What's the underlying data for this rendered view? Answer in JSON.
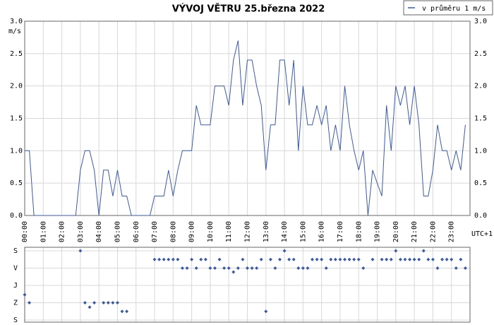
{
  "chart_data": [
    {
      "type": "line",
      "title": "VÝVOJ VĚTRU  25.března 2022",
      "ylabel": "m/s",
      "xlabel": "UTC+1",
      "legend": "top-right",
      "grid": true,
      "right_axis": true,
      "xlim": [
        0,
        24
      ],
      "xticks": [
        {
          "value": 0,
          "label": "00:00"
        },
        {
          "value": 1,
          "label": "01:00"
        },
        {
          "value": 2,
          "label": "02:00"
        },
        {
          "value": 3,
          "label": "03:00"
        },
        {
          "value": 4,
          "label": "04:00"
        },
        {
          "value": 5,
          "label": "05:00"
        },
        {
          "value": 6,
          "label": "06:00"
        },
        {
          "value": 7,
          "label": "07:00"
        },
        {
          "value": 8,
          "label": "08:00"
        },
        {
          "value": 9,
          "label": "09:00"
        },
        {
          "value": 10,
          "label": "10:00"
        },
        {
          "value": 11,
          "label": "11:00"
        },
        {
          "value": 12,
          "label": "12:00"
        },
        {
          "value": 13,
          "label": "13:00"
        },
        {
          "value": 14,
          "label": "14:00"
        },
        {
          "value": 15,
          "label": "15:00"
        },
        {
          "value": 16,
          "label": "16:00"
        },
        {
          "value": 17,
          "label": "17:00"
        },
        {
          "value": 18,
          "label": "18:00"
        },
        {
          "value": 19,
          "label": "19:00"
        },
        {
          "value": 20,
          "label": "20:00"
        },
        {
          "value": 21,
          "label": "21:00"
        },
        {
          "value": 22,
          "label": "22:00"
        },
        {
          "value": 23,
          "label": "23:00"
        }
      ],
      "ylim": [
        0,
        3
      ],
      "yticks": [
        {
          "value": 0,
          "label": "0.0"
        },
        {
          "value": 0.5,
          "label": "0.5"
        },
        {
          "value": 1,
          "label": "1.0"
        },
        {
          "value": 1.5,
          "label": "1.5"
        },
        {
          "value": 2,
          "label": "2.0"
        },
        {
          "value": 2.5,
          "label": "2.5"
        },
        {
          "value": 3,
          "label": "3.0"
        }
      ],
      "x": [
        0,
        0.25,
        0.5,
        0.75,
        1,
        1.25,
        1.5,
        1.75,
        2,
        2.25,
        2.5,
        2.75,
        3,
        3.25,
        3.5,
        3.75,
        4,
        4.25,
        4.5,
        4.75,
        5,
        5.25,
        5.5,
        5.75,
        6,
        6.25,
        6.5,
        6.75,
        7,
        7.25,
        7.5,
        7.75,
        8,
        8.25,
        8.5,
        8.75,
        9,
        9.25,
        9.5,
        9.75,
        10,
        10.25,
        10.5,
        10.75,
        11,
        11.25,
        11.5,
        11.75,
        12,
        12.25,
        12.5,
        12.75,
        13,
        13.25,
        13.5,
        13.75,
        14,
        14.25,
        14.5,
        14.75,
        15,
        15.25,
        15.5,
        15.75,
        16,
        16.25,
        16.5,
        16.75,
        17,
        17.25,
        17.5,
        17.75,
        18,
        18.25,
        18.5,
        18.75,
        19,
        19.25,
        19.5,
        19.75,
        20,
        20.25,
        20.5,
        20.75,
        21,
        21.25,
        21.5,
        21.75,
        22,
        22.25,
        22.5,
        22.75,
        23,
        23.25,
        23.5,
        23.75
      ],
      "series": [
        {
          "name": "v průměru 1 m/s",
          "color": "#3a5aa8",
          "values": [
            1.0,
            1.0,
            0,
            0,
            0,
            0,
            0,
            0,
            0,
            0,
            0,
            0,
            0.7,
            1.0,
            1.0,
            0.7,
            0,
            0.7,
            0.7,
            0.3,
            0.7,
            0.3,
            0.3,
            0,
            0,
            0,
            0,
            0,
            0.3,
            0.3,
            0.3,
            0.7,
            0.3,
            0.7,
            1.0,
            1.0,
            1.0,
            1.7,
            1.4,
            1.4,
            1.4,
            2.0,
            2.0,
            2.0,
            1.7,
            2.4,
            2.7,
            1.7,
            2.4,
            2.4,
            2.0,
            1.7,
            0.7,
            1.4,
            1.4,
            2.4,
            2.4,
            1.7,
            2.4,
            1.0,
            2.0,
            1.4,
            1.4,
            1.7,
            1.4,
            1.7,
            1.0,
            1.4,
            1.0,
            2.0,
            1.4,
            1.0,
            0.7,
            1.0,
            0,
            0.7,
            0.5,
            0.3,
            1.7,
            1.0,
            2.0,
            1.7,
            2.0,
            1.4,
            2.0,
            1.4,
            0.3,
            0.3,
            0.7,
            1.4,
            1.0,
            1.0,
            0.7,
            1.0,
            0.7,
            1.4
          ]
        }
      ]
    },
    {
      "type": "scatter",
      "xlim": [
        0,
        24
      ],
      "ylim": [
        0,
        360
      ],
      "yreverse": true,
      "yticks": [
        {
          "value": 0,
          "label": "S"
        },
        {
          "value": 90,
          "label": "V"
        },
        {
          "value": 180,
          "label": "J"
        },
        {
          "value": 270,
          "label": "Z"
        },
        {
          "value": 360,
          "label": "S"
        }
      ],
      "color": "#3a5aa8",
      "x": [
        0,
        0.25,
        0.5,
        0.75,
        1,
        1.25,
        1.5,
        1.75,
        2,
        2.25,
        2.5,
        2.75,
        3,
        3.25,
        3.5,
        3.75,
        4,
        4.25,
        4.5,
        4.75,
        5,
        5.25,
        5.5,
        5.75,
        6,
        6.25,
        6.5,
        6.75,
        7,
        7.25,
        7.5,
        7.75,
        8,
        8.25,
        8.5,
        8.75,
        9,
        9.25,
        9.5,
        9.75,
        10,
        10.25,
        10.5,
        10.75,
        11,
        11.25,
        11.5,
        11.75,
        12,
        12.25,
        12.5,
        12.75,
        13,
        13.25,
        13.5,
        13.75,
        14,
        14.25,
        14.5,
        14.75,
        15,
        15.25,
        15.5,
        15.75,
        16,
        16.25,
        16.5,
        16.75,
        17,
        17.25,
        17.5,
        17.75,
        18,
        18.25,
        18.5,
        18.75,
        19,
        19.25,
        19.5,
        19.75,
        20,
        20.25,
        20.5,
        20.75,
        21,
        21.25,
        21.5,
        21.75,
        22,
        22.25,
        22.5,
        22.75,
        23,
        23.25,
        23.5,
        23.75
      ],
      "values": [
        228,
        270,
        null,
        null,
        null,
        null,
        null,
        null,
        null,
        null,
        null,
        null,
        0,
        270,
        293,
        270,
        null,
        270,
        270,
        270,
        270,
        315,
        315,
        null,
        null,
        null,
        null,
        null,
        45,
        45,
        45,
        45,
        45,
        45,
        90,
        90,
        45,
        90,
        45,
        45,
        90,
        90,
        45,
        90,
        90,
        110,
        90,
        45,
        90,
        90,
        90,
        45,
        315,
        45,
        90,
        45,
        0,
        45,
        45,
        90,
        90,
        90,
        45,
        45,
        45,
        90,
        45,
        45,
        45,
        45,
        45,
        45,
        45,
        90,
        null,
        45,
        null,
        45,
        45,
        45,
        0,
        45,
        45,
        45,
        45,
        45,
        0,
        45,
        45,
        90,
        45,
        45,
        45,
        90,
        45,
        90
      ]
    }
  ]
}
